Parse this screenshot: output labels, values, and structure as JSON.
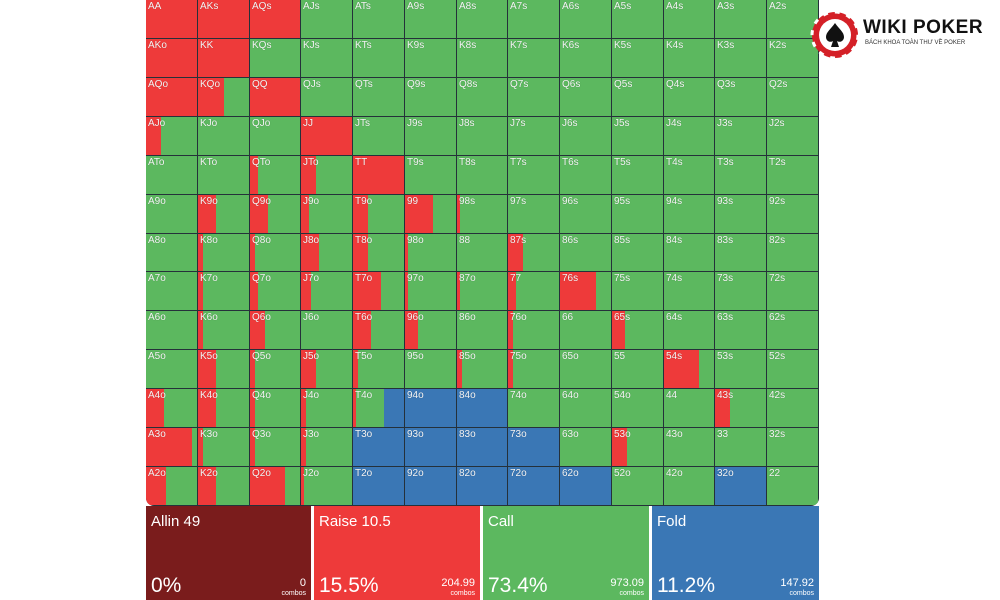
{
  "colors": {
    "allin": "#7a1c1c",
    "raise": "#ee3a3a",
    "call": "#5cb85f",
    "fold": "#3a77b5"
  },
  "logo": {
    "name": "WIKI POKER",
    "tagline": "BÁCH KHOA TOÀN THƯ VỀ POKER"
  },
  "ranks": [
    "A",
    "K",
    "Q",
    "J",
    "T",
    "9",
    "8",
    "7",
    "6",
    "5",
    "4",
    "3",
    "2"
  ],
  "hands": [
    [
      "AA",
      "AKs",
      "AQs",
      "AJs",
      "ATs",
      "A9s",
      "A8s",
      "A7s",
      "A6s",
      "A5s",
      "A4s",
      "A3s",
      "A2s"
    ],
    [
      "AKo",
      "KK",
      "KQs",
      "KJs",
      "KTs",
      "K9s",
      "K8s",
      "K7s",
      "K6s",
      "K5s",
      "K4s",
      "K3s",
      "K2s"
    ],
    [
      "AQo",
      "KQo",
      "QQ",
      "QJs",
      "QTs",
      "Q9s",
      "Q8s",
      "Q7s",
      "Q6s",
      "Q5s",
      "Q4s",
      "Q3s",
      "Q2s"
    ],
    [
      "AJo",
      "KJo",
      "QJo",
      "JJ",
      "JTs",
      "J9s",
      "J8s",
      "J7s",
      "J6s",
      "J5s",
      "J4s",
      "J3s",
      "J2s"
    ],
    [
      "ATo",
      "KTo",
      "QTo",
      "JTo",
      "TT",
      "T9s",
      "T8s",
      "T7s",
      "T6s",
      "T5s",
      "T4s",
      "T3s",
      "T2s"
    ],
    [
      "A9o",
      "K9o",
      "Q9o",
      "J9o",
      "T9o",
      "99",
      "98s",
      "97s",
      "96s",
      "95s",
      "94s",
      "93s",
      "92s"
    ],
    [
      "A8o",
      "K8o",
      "Q8o",
      "J8o",
      "T8o",
      "98o",
      "88",
      "87s",
      "86s",
      "85s",
      "84s",
      "83s",
      "82s"
    ],
    [
      "A7o",
      "K7o",
      "Q7o",
      "J7o",
      "T7o",
      "97o",
      "87o",
      "77",
      "76s",
      "75s",
      "74s",
      "73s",
      "72s"
    ],
    [
      "A6o",
      "K6o",
      "Q6o",
      "J6o",
      "T6o",
      "96o",
      "86o",
      "76o",
      "66",
      "65s",
      "64s",
      "63s",
      "62s"
    ],
    [
      "A5o",
      "K5o",
      "Q5o",
      "J5o",
      "T5o",
      "95o",
      "85o",
      "75o",
      "65o",
      "55",
      "54s",
      "53s",
      "52s"
    ],
    [
      "A4o",
      "K4o",
      "Q4o",
      "J4o",
      "T4o",
      "94o",
      "84o",
      "74o",
      "64o",
      "54o",
      "44",
      "43s",
      "42s"
    ],
    [
      "A3o",
      "K3o",
      "Q3o",
      "J3o",
      "T3o",
      "93o",
      "83o",
      "73o",
      "63o",
      "53o",
      "43o",
      "33",
      "32s"
    ],
    [
      "A2o",
      "K2o",
      "Q2o",
      "J2o",
      "T2o",
      "92o",
      "82o",
      "72o",
      "62o",
      "52o",
      "42o",
      "32o",
      "22"
    ]
  ],
  "raise_freq": [
    [
      1.0,
      1.0,
      1.0,
      0,
      0,
      0,
      0,
      0,
      0,
      0,
      0,
      0,
      0
    ],
    [
      1.0,
      1.0,
      0,
      0,
      0,
      0,
      0,
      0,
      0,
      0,
      0,
      0,
      0
    ],
    [
      1.0,
      0.5,
      1.0,
      0,
      0,
      0,
      0,
      0,
      0,
      0,
      0,
      0,
      0
    ],
    [
      0.3,
      0,
      0,
      1.0,
      0,
      0,
      0,
      0,
      0,
      0,
      0,
      0,
      0
    ],
    [
      0,
      0,
      0.15,
      0.3,
      1.0,
      0,
      0,
      0,
      0,
      0,
      0,
      0,
      0
    ],
    [
      0,
      0.35,
      0.35,
      0.15,
      0.3,
      0.55,
      0.05,
      0,
      0,
      0,
      0,
      0,
      0
    ],
    [
      0,
      0.1,
      0.1,
      0.35,
      0.3,
      0.05,
      0,
      0.3,
      0,
      0,
      0,
      0,
      0
    ],
    [
      0,
      0.1,
      0.15,
      0.2,
      0.55,
      0.05,
      0.05,
      0.15,
      0.7,
      0,
      0,
      0,
      0
    ],
    [
      0,
      0.1,
      0.3,
      0,
      0.35,
      0.25,
      0,
      0.1,
      0,
      0.25,
      0,
      0,
      0
    ],
    [
      0,
      0.35,
      0.1,
      0.3,
      0.1,
      0,
      0.1,
      0.1,
      0,
      0,
      0.7,
      0,
      0
    ],
    [
      0.35,
      0.35,
      0.1,
      0.1,
      0.05,
      0,
      0,
      0,
      0,
      0,
      0,
      0.3,
      0
    ],
    [
      0.9,
      0.1,
      0.1,
      0.1,
      0,
      0,
      0,
      0,
      0,
      0.3,
      0,
      0,
      0
    ],
    [
      0.4,
      0.35,
      0.7,
      0.05,
      0,
      0,
      0,
      0,
      0,
      0,
      0,
      0,
      0
    ]
  ],
  "call_freq": [
    [
      0,
      0,
      0,
      1,
      1,
      1,
      1,
      1,
      1,
      1,
      1,
      1,
      1
    ],
    [
      0,
      0,
      1,
      1,
      1,
      1,
      1,
      1,
      1,
      1,
      1,
      1,
      1
    ],
    [
      0,
      0.5,
      0,
      1,
      1,
      1,
      1,
      1,
      1,
      1,
      1,
      1,
      1
    ],
    [
      0.7,
      1,
      1,
      0,
      1,
      1,
      1,
      1,
      1,
      1,
      1,
      1,
      1
    ],
    [
      1,
      1,
      0.85,
      0.7,
      0,
      1,
      1,
      1,
      1,
      1,
      1,
      1,
      1
    ],
    [
      1,
      0.65,
      0.65,
      0.85,
      0.7,
      0.45,
      0.95,
      1,
      1,
      1,
      1,
      1,
      1
    ],
    [
      1,
      0.9,
      0.9,
      0.65,
      0.7,
      0.95,
      1,
      0.7,
      1,
      1,
      1,
      1,
      1
    ],
    [
      1,
      0.9,
      0.85,
      0.8,
      0.45,
      0.95,
      0.95,
      0.85,
      0.3,
      1,
      1,
      1,
      1
    ],
    [
      1,
      0.9,
      0.7,
      1,
      0.65,
      0.75,
      1,
      0.9,
      1,
      0.75,
      1,
      1,
      1
    ],
    [
      1,
      0.65,
      0.9,
      0.7,
      0.9,
      1,
      0.9,
      0.9,
      1,
      1,
      0.3,
      1,
      1
    ],
    [
      0.65,
      0.65,
      0.9,
      0.9,
      0.55,
      0,
      0,
      1,
      1,
      1,
      1,
      0.7,
      1
    ],
    [
      0.1,
      0.9,
      0.9,
      0.9,
      0,
      0,
      0,
      0,
      1,
      0.7,
      1,
      1,
      1
    ],
    [
      0.6,
      0.65,
      0.3,
      0.95,
      0,
      0,
      0,
      0,
      0,
      1,
      1,
      0,
      1
    ]
  ],
  "summary": [
    {
      "label": "Allin 49",
      "percent": "0%",
      "combos": "0",
      "unit": "combos",
      "color": "#7a1c1c"
    },
    {
      "label": "Raise 10.5",
      "percent": "15.5%",
      "combos": "204.99",
      "unit": "combos",
      "color": "#ee3a3a"
    },
    {
      "label": "Call",
      "percent": "73.4%",
      "combos": "973.09",
      "unit": "combos",
      "color": "#5cb85f"
    },
    {
      "label": "Fold",
      "percent": "11.2%",
      "combos": "147.92",
      "unit": "combos",
      "color": "#3a77b5"
    }
  ]
}
